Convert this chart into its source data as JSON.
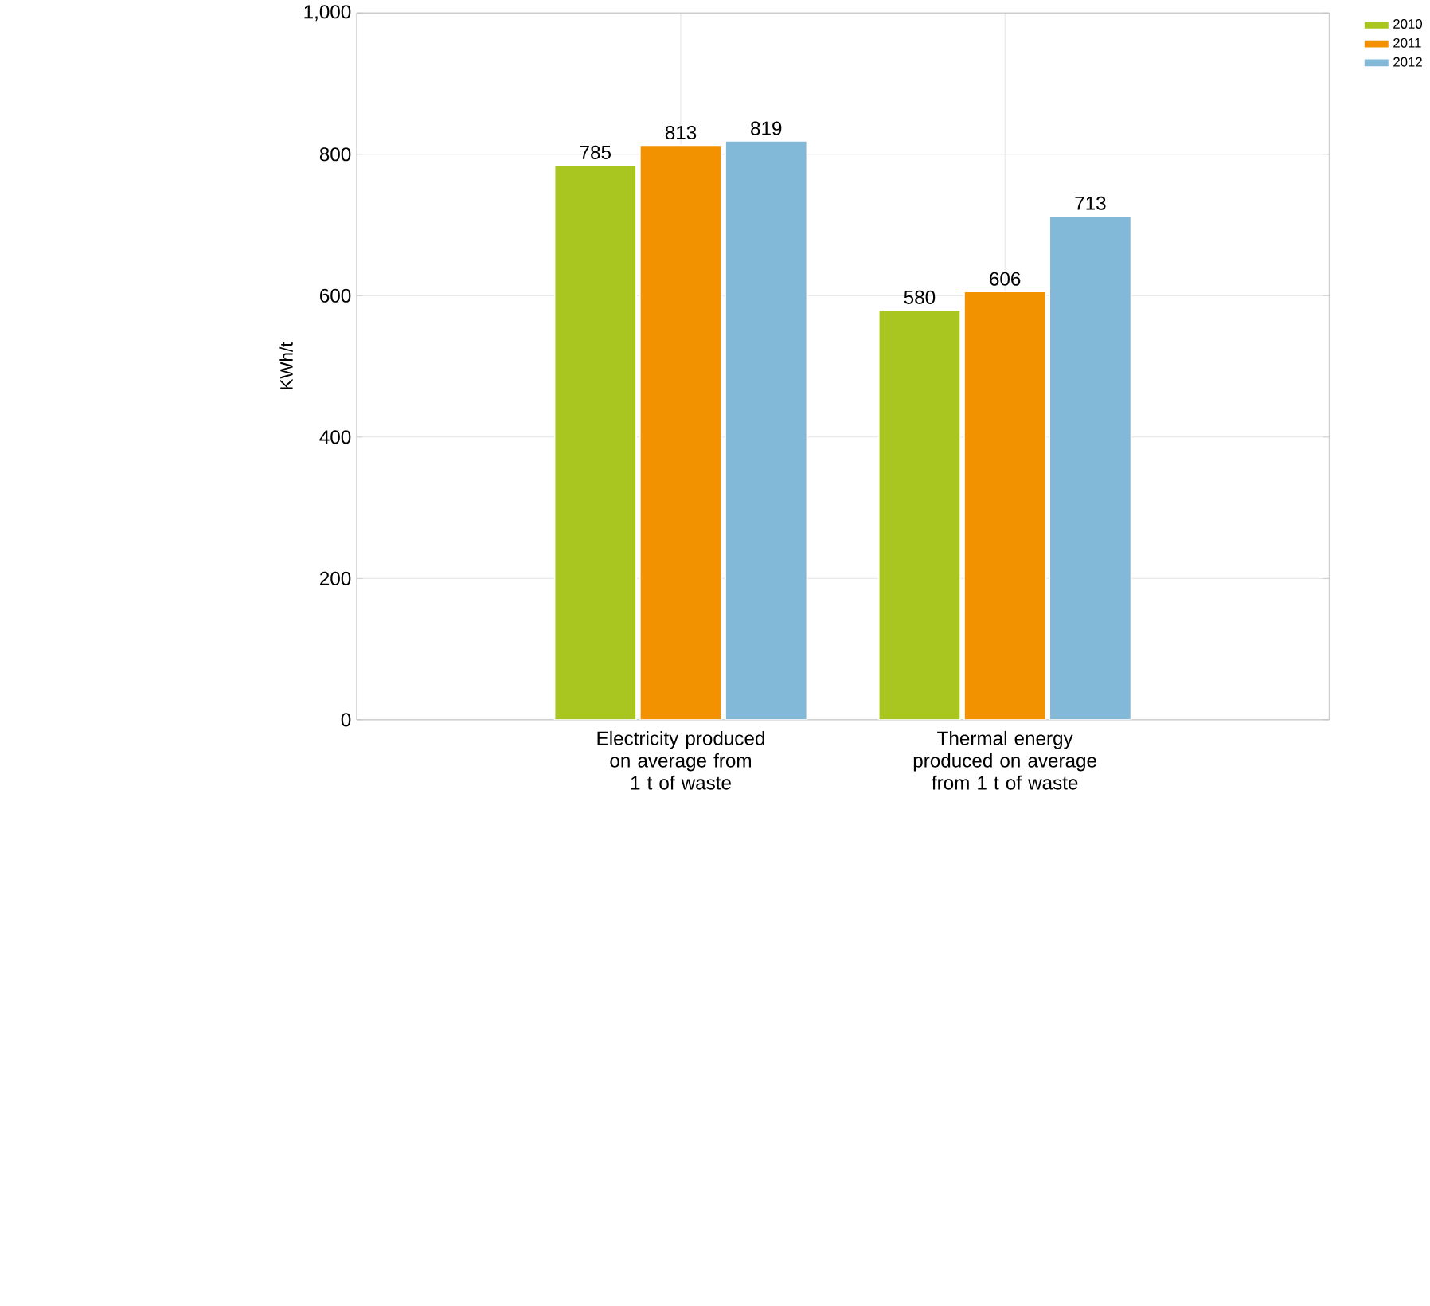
{
  "chart_data": {
    "type": "bar",
    "ylabel": "KWh/t",
    "categories": [
      "Electricity produced on average from 1 t of waste",
      "Thermal energy produced on average from 1 t of waste"
    ],
    "series": [
      {
        "name": "2010",
        "color": "#a8c520",
        "values": [
          785,
          580
        ]
      },
      {
        "name": "2011",
        "color": "#f39200",
        "values": [
          813,
          606
        ]
      },
      {
        "name": "2012",
        "color": "#82b8d8",
        "values": [
          819,
          713
        ]
      }
    ],
    "ylim": [
      0,
      1000
    ],
    "yticks": [
      0,
      200,
      400,
      600,
      800,
      {
        "value": 1000,
        "label": "1,000"
      }
    ],
    "grid": true,
    "legend": "top right",
    "data_labels": true
  }
}
